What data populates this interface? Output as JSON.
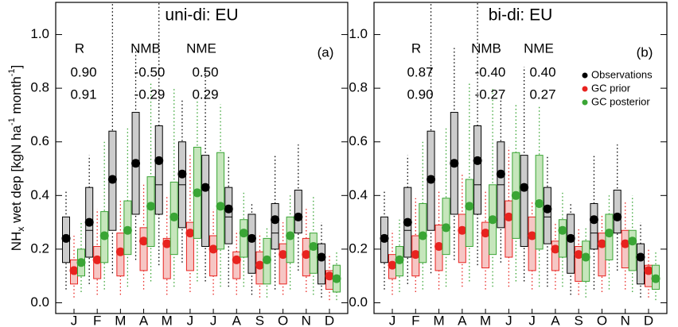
{
  "chart_data": [
    {
      "type": "box",
      "title": "uni-di: EU",
      "panel_label": "(a)",
      "y_label": [
        "NH",
        "x",
        " wet dep [kgN ha",
        "-1",
        " month",
        "-1",
        "]"
      ],
      "categories": [
        "J",
        "F",
        "M",
        "A",
        "M",
        "J",
        "J",
        "A",
        "S",
        "O",
        "N",
        "D"
      ],
      "ylim": [
        -0.04,
        1.12
      ],
      "yticks": [
        {
          "value": 0,
          "label": "0.0"
        },
        {
          "value": 0.2,
          "label": "0.2"
        },
        {
          "value": 0.4,
          "label": "0.4"
        },
        {
          "value": 0.6,
          "label": "0.6"
        },
        {
          "value": 0.8,
          "label": "0.8"
        },
        {
          "value": 1,
          "label": "1.0"
        }
      ],
      "legend": false,
      "stats": {
        "headers": [
          "R",
          "NMB",
          "NME"
        ],
        "rows": [
          {
            "color": "#e8231f",
            "values": [
              "0.90",
              "-0.50",
              "0.50"
            ]
          },
          {
            "color": "#3aa535",
            "values": [
              "0.91",
              "-0.29",
              "0.29"
            ]
          }
        ]
      },
      "series": [
        {
          "name": "Observations",
          "color": "#000000",
          "fill": "#cccccc",
          "mean": [
            0.24,
            0.3,
            0.46,
            0.52,
            0.53,
            0.48,
            0.43,
            0.35,
            0.24,
            0.31,
            0.32,
            0.17
          ],
          "q1": [
            0.15,
            0.17,
            0.27,
            0.33,
            0.33,
            0.28,
            0.21,
            0.22,
            0.11,
            0.2,
            0.26,
            0.07
          ],
          "median": [
            0.24,
            0.27,
            0.46,
            0.51,
            0.44,
            0.44,
            0.43,
            0.32,
            0.24,
            0.26,
            0.31,
            0.16
          ],
          "q3": [
            0.32,
            0.43,
            0.64,
            0.71,
            0.66,
            0.6,
            0.55,
            0.43,
            0.33,
            0.37,
            0.42,
            0.22
          ],
          "whisker_low": [
            0.05,
            0.07,
            0.11,
            0.16,
            0.14,
            0.15,
            0.08,
            0.06,
            0.03,
            0.05,
            0.12,
            0.02
          ],
          "whisker_high": [
            0.42,
            0.55,
            1.12,
            0.95,
            1.12,
            0.76,
            0.88,
            0.55,
            0.37,
            0.55,
            0.59,
            0.3
          ]
        },
        {
          "name": "GC prior",
          "color": "#e8231f",
          "fill": "#f6c6c4",
          "mean": [
            0.12,
            0.16,
            0.19,
            0.23,
            0.22,
            0.26,
            0.2,
            0.16,
            0.14,
            0.18,
            0.18,
            0.1
          ],
          "q1": [
            0.07,
            0.09,
            0.1,
            0.12,
            0.09,
            0.12,
            0.1,
            0.09,
            0.07,
            0.07,
            0.1,
            0.05
          ],
          "median": [
            0.12,
            0.16,
            0.19,
            0.23,
            0.22,
            0.26,
            0.2,
            0.16,
            0.14,
            0.18,
            0.18,
            0.1
          ],
          "q3": [
            0.16,
            0.21,
            0.26,
            0.28,
            0.24,
            0.3,
            0.25,
            0.19,
            0.19,
            0.22,
            0.24,
            0.12
          ],
          "whisker_low": [
            0.02,
            0.03,
            0.03,
            0.05,
            0.03,
            0.04,
            0.03,
            0.03,
            0.02,
            0.03,
            0.04,
            0.01
          ],
          "whisker_high": [
            0.25,
            0.35,
            0.38,
            0.44,
            0.4,
            0.55,
            0.35,
            0.27,
            0.26,
            0.3,
            0.35,
            0.18
          ]
        },
        {
          "name": "GC posterior",
          "color": "#3aa535",
          "fill": "#c6e6bc",
          "mean": [
            0.15,
            0.25,
            0.27,
            0.36,
            0.32,
            0.41,
            0.36,
            0.26,
            0.16,
            0.25,
            0.21,
            0.09
          ],
          "q1": [
            0.1,
            0.15,
            0.18,
            0.21,
            0.18,
            0.24,
            0.2,
            0.17,
            0.07,
            0.15,
            0.11,
            0.04
          ],
          "median": [
            0.15,
            0.24,
            0.27,
            0.35,
            0.31,
            0.4,
            0.35,
            0.25,
            0.16,
            0.24,
            0.2,
            0.09
          ],
          "q3": [
            0.2,
            0.34,
            0.38,
            0.47,
            0.45,
            0.58,
            0.56,
            0.31,
            0.24,
            0.32,
            0.26,
            0.14
          ],
          "whisker_low": [
            0.04,
            0.05,
            0.06,
            0.08,
            0.06,
            0.08,
            0.06,
            0.06,
            0.02,
            0.05,
            0.03,
            0.01
          ],
          "whisker_high": [
            0.3,
            0.6,
            0.65,
            0.82,
            0.8,
            0.75,
            0.74,
            0.41,
            0.28,
            0.4,
            0.4,
            0.19
          ]
        }
      ]
    },
    {
      "type": "box",
      "title": "bi-di: EU",
      "panel_label": "(b)",
      "categories": [
        "J",
        "F",
        "M",
        "A",
        "M",
        "J",
        "J",
        "A",
        "S",
        "O",
        "N",
        "D"
      ],
      "ylim": [
        -0.04,
        1.12
      ],
      "yticks": [
        {
          "value": 0,
          "label": "0.0"
        },
        {
          "value": 0.2,
          "label": "0.2"
        },
        {
          "value": 0.4,
          "label": "0.4"
        },
        {
          "value": 0.6,
          "label": "0.6"
        },
        {
          "value": 0.8,
          "label": "0.8"
        },
        {
          "value": 1,
          "label": "1.0"
        }
      ],
      "legend": true,
      "stats": {
        "headers": [
          "R",
          "NMB",
          "NME"
        ],
        "rows": [
          {
            "color": "#e8231f",
            "values": [
              "0.87",
              "-0.40",
              "0.40"
            ]
          },
          {
            "color": "#3aa535",
            "values": [
              "0.90",
              "-0.27",
              "0.27"
            ]
          }
        ]
      },
      "series": [
        {
          "name": "Observations",
          "color": "#000000",
          "fill": "#cccccc",
          "mean": [
            0.24,
            0.3,
            0.46,
            0.52,
            0.53,
            0.48,
            0.43,
            0.35,
            0.24,
            0.31,
            0.32,
            0.17
          ],
          "q1": [
            0.15,
            0.17,
            0.27,
            0.33,
            0.33,
            0.28,
            0.21,
            0.22,
            0.11,
            0.2,
            0.26,
            0.07
          ],
          "median": [
            0.24,
            0.27,
            0.46,
            0.51,
            0.44,
            0.44,
            0.43,
            0.32,
            0.24,
            0.26,
            0.31,
            0.16
          ],
          "q3": [
            0.32,
            0.43,
            0.64,
            0.71,
            0.66,
            0.6,
            0.55,
            0.43,
            0.33,
            0.37,
            0.42,
            0.22
          ],
          "whisker_low": [
            0.05,
            0.07,
            0.11,
            0.16,
            0.14,
            0.15,
            0.08,
            0.06,
            0.03,
            0.05,
            0.12,
            0.02
          ],
          "whisker_high": [
            0.42,
            0.55,
            1.12,
            0.95,
            1.12,
            0.76,
            0.88,
            0.55,
            0.37,
            0.55,
            0.59,
            0.3
          ]
        },
        {
          "name": "GC prior",
          "color": "#e8231f",
          "fill": "#f6c6c4",
          "mean": [
            0.14,
            0.18,
            0.21,
            0.27,
            0.26,
            0.32,
            0.25,
            0.2,
            0.18,
            0.22,
            0.22,
            0.12
          ],
          "q1": [
            0.09,
            0.1,
            0.12,
            0.15,
            0.13,
            0.17,
            0.12,
            0.12,
            0.08,
            0.1,
            0.13,
            0.06
          ],
          "median": [
            0.14,
            0.18,
            0.21,
            0.27,
            0.26,
            0.32,
            0.25,
            0.2,
            0.18,
            0.22,
            0.22,
            0.12
          ],
          "q3": [
            0.18,
            0.25,
            0.29,
            0.33,
            0.3,
            0.38,
            0.32,
            0.23,
            0.21,
            0.26,
            0.27,
            0.14
          ],
          "whisker_low": [
            0.03,
            0.04,
            0.05,
            0.06,
            0.05,
            0.06,
            0.05,
            0.05,
            0.03,
            0.04,
            0.05,
            0.02
          ],
          "whisker_high": [
            0.27,
            0.39,
            0.42,
            0.48,
            0.42,
            0.58,
            0.38,
            0.3,
            0.28,
            0.33,
            0.38,
            0.2
          ]
        },
        {
          "name": "GC posterior",
          "color": "#3aa535",
          "fill": "#c6e6bc",
          "mean": [
            0.16,
            0.25,
            0.28,
            0.36,
            0.31,
            0.4,
            0.37,
            0.27,
            0.17,
            0.26,
            0.23,
            0.09
          ],
          "q1": [
            0.1,
            0.15,
            0.18,
            0.21,
            0.18,
            0.24,
            0.2,
            0.17,
            0.08,
            0.16,
            0.12,
            0.05
          ],
          "median": [
            0.16,
            0.24,
            0.28,
            0.35,
            0.3,
            0.39,
            0.36,
            0.26,
            0.17,
            0.25,
            0.22,
            0.09
          ],
          "q3": [
            0.21,
            0.37,
            0.39,
            0.46,
            0.44,
            0.56,
            0.55,
            0.31,
            0.23,
            0.33,
            0.27,
            0.14
          ],
          "whisker_low": [
            0.04,
            0.05,
            0.06,
            0.08,
            0.06,
            0.08,
            0.06,
            0.06,
            0.02,
            0.05,
            0.04,
            0.01
          ],
          "whisker_high": [
            0.31,
            0.6,
            0.65,
            0.82,
            0.8,
            0.74,
            0.73,
            0.41,
            0.28,
            0.4,
            0.4,
            0.19
          ]
        }
      ]
    }
  ]
}
